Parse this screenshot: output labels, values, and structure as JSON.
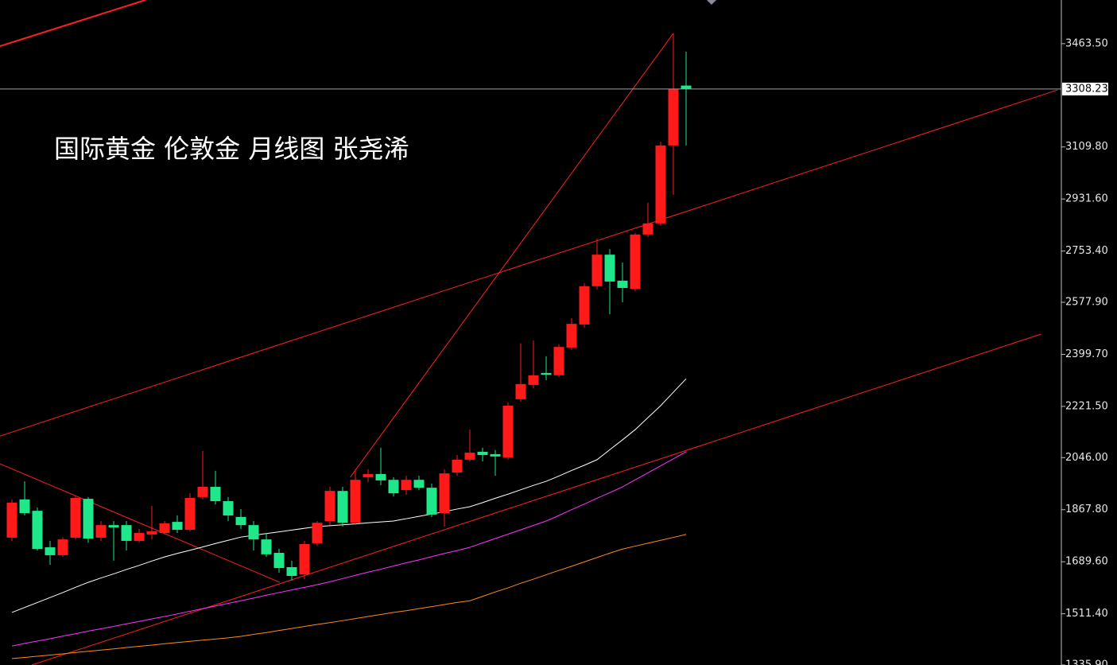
{
  "chart_data": {
    "type": "candlestick",
    "title": "国际黄金 伦敦金  月线图 张尧浠",
    "open": [
      1772,
      1903,
      1864,
      1739,
      1712,
      1772,
      1905,
      1772,
      1815,
      1815,
      1761,
      1783,
      1788,
      1826,
      1799,
      1911,
      1946,
      1897,
      1843,
      1815,
      1766,
      1720,
      1671,
      1646,
      1753,
      1829,
      1932,
      1823,
      1979,
      1990,
      1970,
      1935,
      1970,
      1943,
      1856,
      1995,
      2039,
      2066,
      2058,
      2047,
      2246,
      2295,
      2336,
      2328,
      2423,
      2502,
      2633,
      2741,
      2652,
      2624,
      2810,
      2848,
      3115,
      3320
    ],
    "high": [
      1903,
      1965,
      1875,
      1761,
      1774,
      1913,
      1911,
      1829,
      1829,
      1829,
      1802,
      1881,
      1829,
      1848,
      1924,
      2069,
      2001,
      1911,
      1870,
      1829,
      1788,
      1734,
      1693,
      1761,
      1829,
      1946,
      1946,
      2006,
      2006,
      2080,
      1979,
      1984,
      1984,
      1957,
      2006,
      2055,
      2142,
      2080,
      2072,
      2235,
      2437,
      2447,
      2393,
      2434,
      2524,
      2643,
      2796,
      2760,
      2714,
      2815,
      2919,
      3128,
      3499,
      3436
    ],
    "low": [
      1761,
      1848,
      1728,
      1679,
      1706,
      1766,
      1755,
      1761,
      1693,
      1728,
      1755,
      1766,
      1783,
      1788,
      1794,
      1903,
      1886,
      1829,
      1802,
      1728,
      1706,
      1652,
      1625,
      1630,
      1744,
      1815,
      1810,
      1815,
      1962,
      1952,
      1913,
      1919,
      1935,
      1843,
      1810,
      1984,
      2033,
      2033,
      1984,
      2039,
      2238,
      2284,
      2311,
      2322,
      2415,
      2491,
      2622,
      2537,
      2578,
      2616,
      2801,
      2840,
      2946,
      3115
    ],
    "close": [
      1892,
      1856,
      1733,
      1712,
      1766,
      1908,
      1769,
      1815,
      1807,
      1761,
      1788,
      1794,
      1821,
      1799,
      1908,
      1946,
      1897,
      1848,
      1815,
      1766,
      1715,
      1668,
      1641,
      1750,
      1823,
      1932,
      1823,
      1970,
      1990,
      1968,
      1924,
      1970,
      1943,
      1851,
      1992,
      2039,
      2063,
      2055,
      2050,
      2224,
      2298,
      2328,
      2330,
      2425,
      2504,
      2633,
      2741,
      2649,
      2627,
      2810,
      2848,
      3115,
      3308,
      3308.23
    ],
    "up_color": "#ff1a1a",
    "down_color": "#1ee88a",
    "overlays": [
      {
        "color": "#ffffff",
        "values": [
          1516,
          1533,
          1550,
          1567,
          1584,
          1602,
          1619,
          1634,
          1648,
          1663,
          1677,
          1692,
          1706,
          1718,
          1729,
          1740,
          1752,
          1763,
          1774,
          1780,
          1786,
          1792,
          1798,
          1804,
          1810,
          1813,
          1816,
          1819,
          1823,
          1826,
          1829,
          1837,
          1845,
          1853,
          1861,
          1870,
          1878,
          1892,
          1907,
          1921,
          1936,
          1951,
          1965,
          1983,
          2002,
          2020,
          2039,
          2073,
          2107,
          2142,
          2183,
          2224,
          2270,
          2316
        ]
      },
      {
        "color": "#ff33ff",
        "values": [
          1401,
          1410,
          1418,
          1426,
          1435,
          1443,
          1452,
          1460,
          1468,
          1477,
          1485,
          1494,
          1502,
          1511,
          1520,
          1529,
          1538,
          1547,
          1556,
          1565,
          1575,
          1584,
          1593,
          1602,
          1611,
          1621,
          1632,
          1643,
          1654,
          1664,
          1675,
          1686,
          1696,
          1707,
          1718,
          1728,
          1739,
          1754,
          1769,
          1784,
          1799,
          1814,
          1829,
          1848,
          1868,
          1887,
          1907,
          1926,
          1946,
          1970,
          1994,
          2018,
          2042,
          2066
        ]
      },
      {
        "color": "#ff8c1a",
        "values": [
          1358,
          1362,
          1366,
          1370,
          1374,
          1379,
          1383,
          1387,
          1391,
          1396,
          1400,
          1404,
          1409,
          1413,
          1417,
          1421,
          1425,
          1429,
          1434,
          1441,
          1447,
          1454,
          1461,
          1468,
          1475,
          1481,
          1488,
          1495,
          1502,
          1509,
          1516,
          1522,
          1529,
          1536,
          1543,
          1550,
          1556,
          1571,
          1586,
          1600,
          1616,
          1630,
          1645,
          1660,
          1674,
          1689,
          1704,
          1719,
          1733,
          1743,
          1753,
          1763,
          1773,
          1783
        ]
      }
    ],
    "trend_lines": [
      {
        "color": "#ff2020",
        "from": [
          -0.94,
          3455
        ],
        "to": [
          10.5,
          3613
        ]
      },
      {
        "color": "#ff2020",
        "from": [
          -0.94,
          2120
        ],
        "to": [
          82.2,
          3305
        ]
      },
      {
        "color": "#ff2020",
        "from": [
          1.56,
          1336
        ],
        "to": [
          80.9,
          2469
        ]
      },
      {
        "color": "#ff2020",
        "from": [
          26.6,
          1979
        ],
        "to": [
          52,
          3499
        ]
      },
      {
        "color": "#ff2020",
        "from": [
          -0.94,
          2025
        ],
        "to": [
          21.06,
          1619
        ]
      }
    ],
    "last_price": 3308.23,
    "ylim": [
      1336,
      3613
    ],
    "yticks": [
      {
        "value": 3463.5,
        "label": "3463.50"
      },
      {
        "value": 3109.8,
        "label": "3109.80"
      },
      {
        "value": 2931.6,
        "label": "2931.60"
      },
      {
        "value": 2753.4,
        "label": "2753.40"
      },
      {
        "value": 2577.9,
        "label": "2577.90"
      },
      {
        "value": 2399.7,
        "label": "2399.70"
      },
      {
        "value": 2221.5,
        "label": "2221.50"
      },
      {
        "value": 2046,
        "label": "2046.00"
      },
      {
        "value": 1867.8,
        "label": "1867.80"
      },
      {
        "value": 1689.6,
        "label": "1689.60"
      },
      {
        "value": 1511.4,
        "label": "1511.40"
      },
      {
        "value": 1335.9,
        "label": "1335.90"
      }
    ]
  }
}
